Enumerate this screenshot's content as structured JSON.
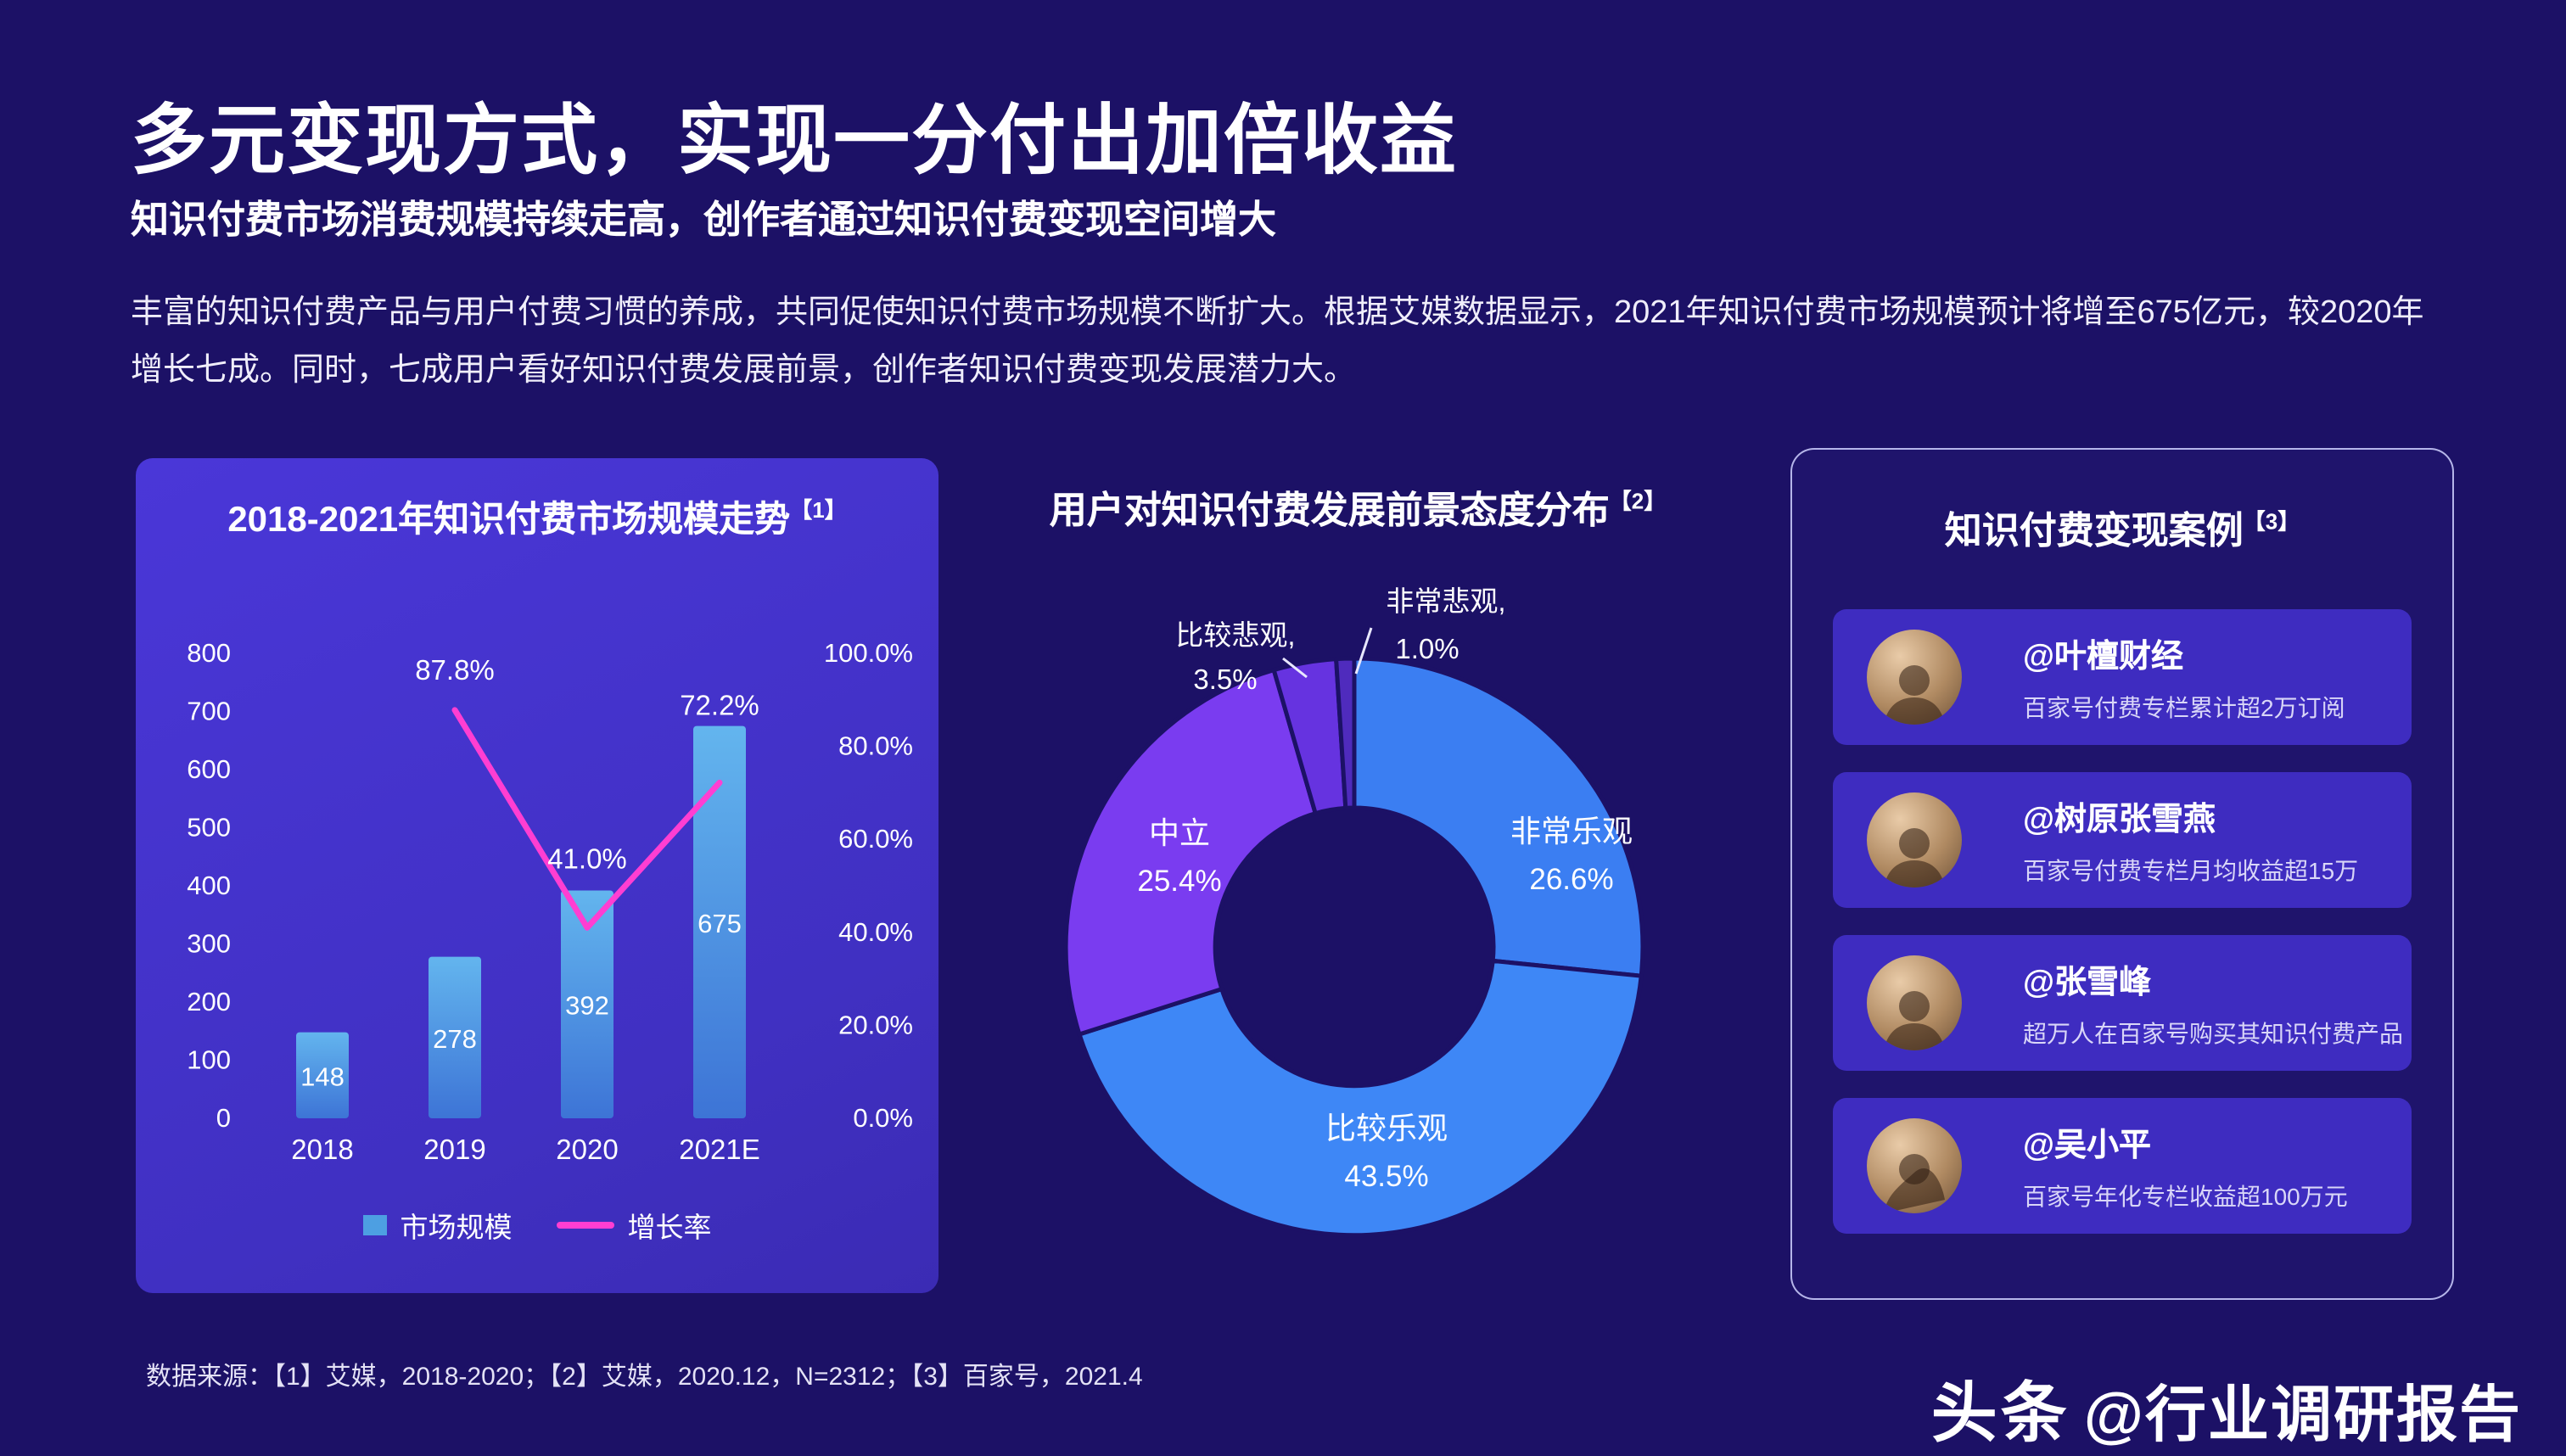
{
  "page": {
    "title": "多元变现方式，实现一分付出加倍收益",
    "subtitle": "知识付费市场消费规模持续走高，创作者通过知识付费变现空间增大",
    "body_lines": [
      "丰富的知识付费产品与用户付费习惯的养成，共同促使知识付费市场规模不断扩大。根据艾媒数据显示，2021年知识付费市场规模预计将增至675亿元，较2020年",
      "增长七成。同时，七成用户看好知识付费发展前景，创作者知识付费变现发展潜力大。"
    ],
    "source": "数据来源：【1】艾媒，2018-2020；【2】艾媒，2020.12，N=2312；【3】百家号，2021.4",
    "brand": {
      "logo": "头条",
      "handle": "@行业调研报告"
    }
  },
  "chart_data": [
    {
      "type": "bar",
      "title": "2018-2021年知识付费市场规模走势",
      "ref_marker": "【1】",
      "categories": [
        "2018",
        "2019",
        "2020",
        "2021E"
      ],
      "series": [
        {
          "name": "市场规模",
          "type": "bar",
          "values": [
            148,
            278,
            392,
            675
          ]
        },
        {
          "name": "增长率",
          "type": "line",
          "values": [
            null,
            87.8,
            41.0,
            72.2
          ],
          "labels": [
            "",
            "87.8%",
            "41.0%",
            "72.2%"
          ]
        }
      ],
      "left_axis": {
        "min": 0,
        "max": 800,
        "step": 100
      },
      "right_axis": {
        "min": 0,
        "max": 100,
        "step": 20,
        "format": "percent"
      },
      "legend_position": "bottom",
      "colors": {
        "bar_top": "#63b5ee",
        "bar_bottom": "#3d74d6",
        "line": "#ff3ed2"
      }
    },
    {
      "type": "pie",
      "title": "用户对知识付费发展前景态度分布",
      "ref_marker": "【2】",
      "labels": [
        "非常乐观",
        "比较乐观",
        "中立",
        "比较悲观",
        "非常悲观"
      ],
      "values": [
        26.6,
        43.5,
        25.4,
        3.5,
        1.0
      ],
      "colors": [
        "#3b7ef2",
        "#3e87f6",
        "#7a3cf0",
        "#6633e0",
        "#4f2bbd"
      ]
    }
  ],
  "cases": {
    "title": "知识付费变现案例",
    "ref_marker": "【3】",
    "items": [
      {
        "name": "@叶檀财经",
        "desc": "百家号付费专栏累计超2万订阅"
      },
      {
        "name": "@树原张雪燕",
        "desc": "百家号付费专栏月均收益超15万"
      },
      {
        "name": "@张雪峰",
        "desc": "超万人在百家号购买其知识付费产品"
      },
      {
        "name": "@吴小平",
        "desc": "百家号年化专栏收益超100万元"
      }
    ]
  }
}
